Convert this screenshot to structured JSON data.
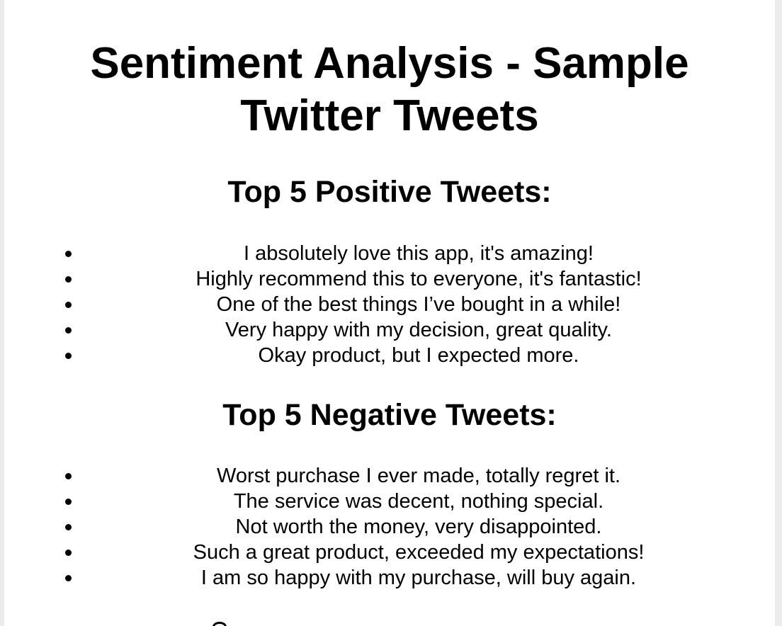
{
  "document": {
    "title_line1": "Sentiment Analysis - Sample",
    "title_line2": "Twitter Tweets"
  },
  "positive": {
    "heading": "Top 5 Positive Tweets:",
    "tweets": [
      "I absolutely love this app, it's amazing!",
      "Highly recommend this to everyone, it's fantastic!",
      "One of the best things I’ve bought in a while!",
      "Very happy with my decision, great quality.",
      "Okay product, but I expected more."
    ]
  },
  "negative": {
    "heading": "Top 5 Negative Tweets:",
    "tweets": [
      "Worst purchase I ever made, totally regret it.",
      "The service was decent, nothing special.",
      "Not worth the money, very disappointed.",
      "Such a great product, exceeded my expectations!",
      "I am so happy with my purchase, will buy again."
    ]
  }
}
